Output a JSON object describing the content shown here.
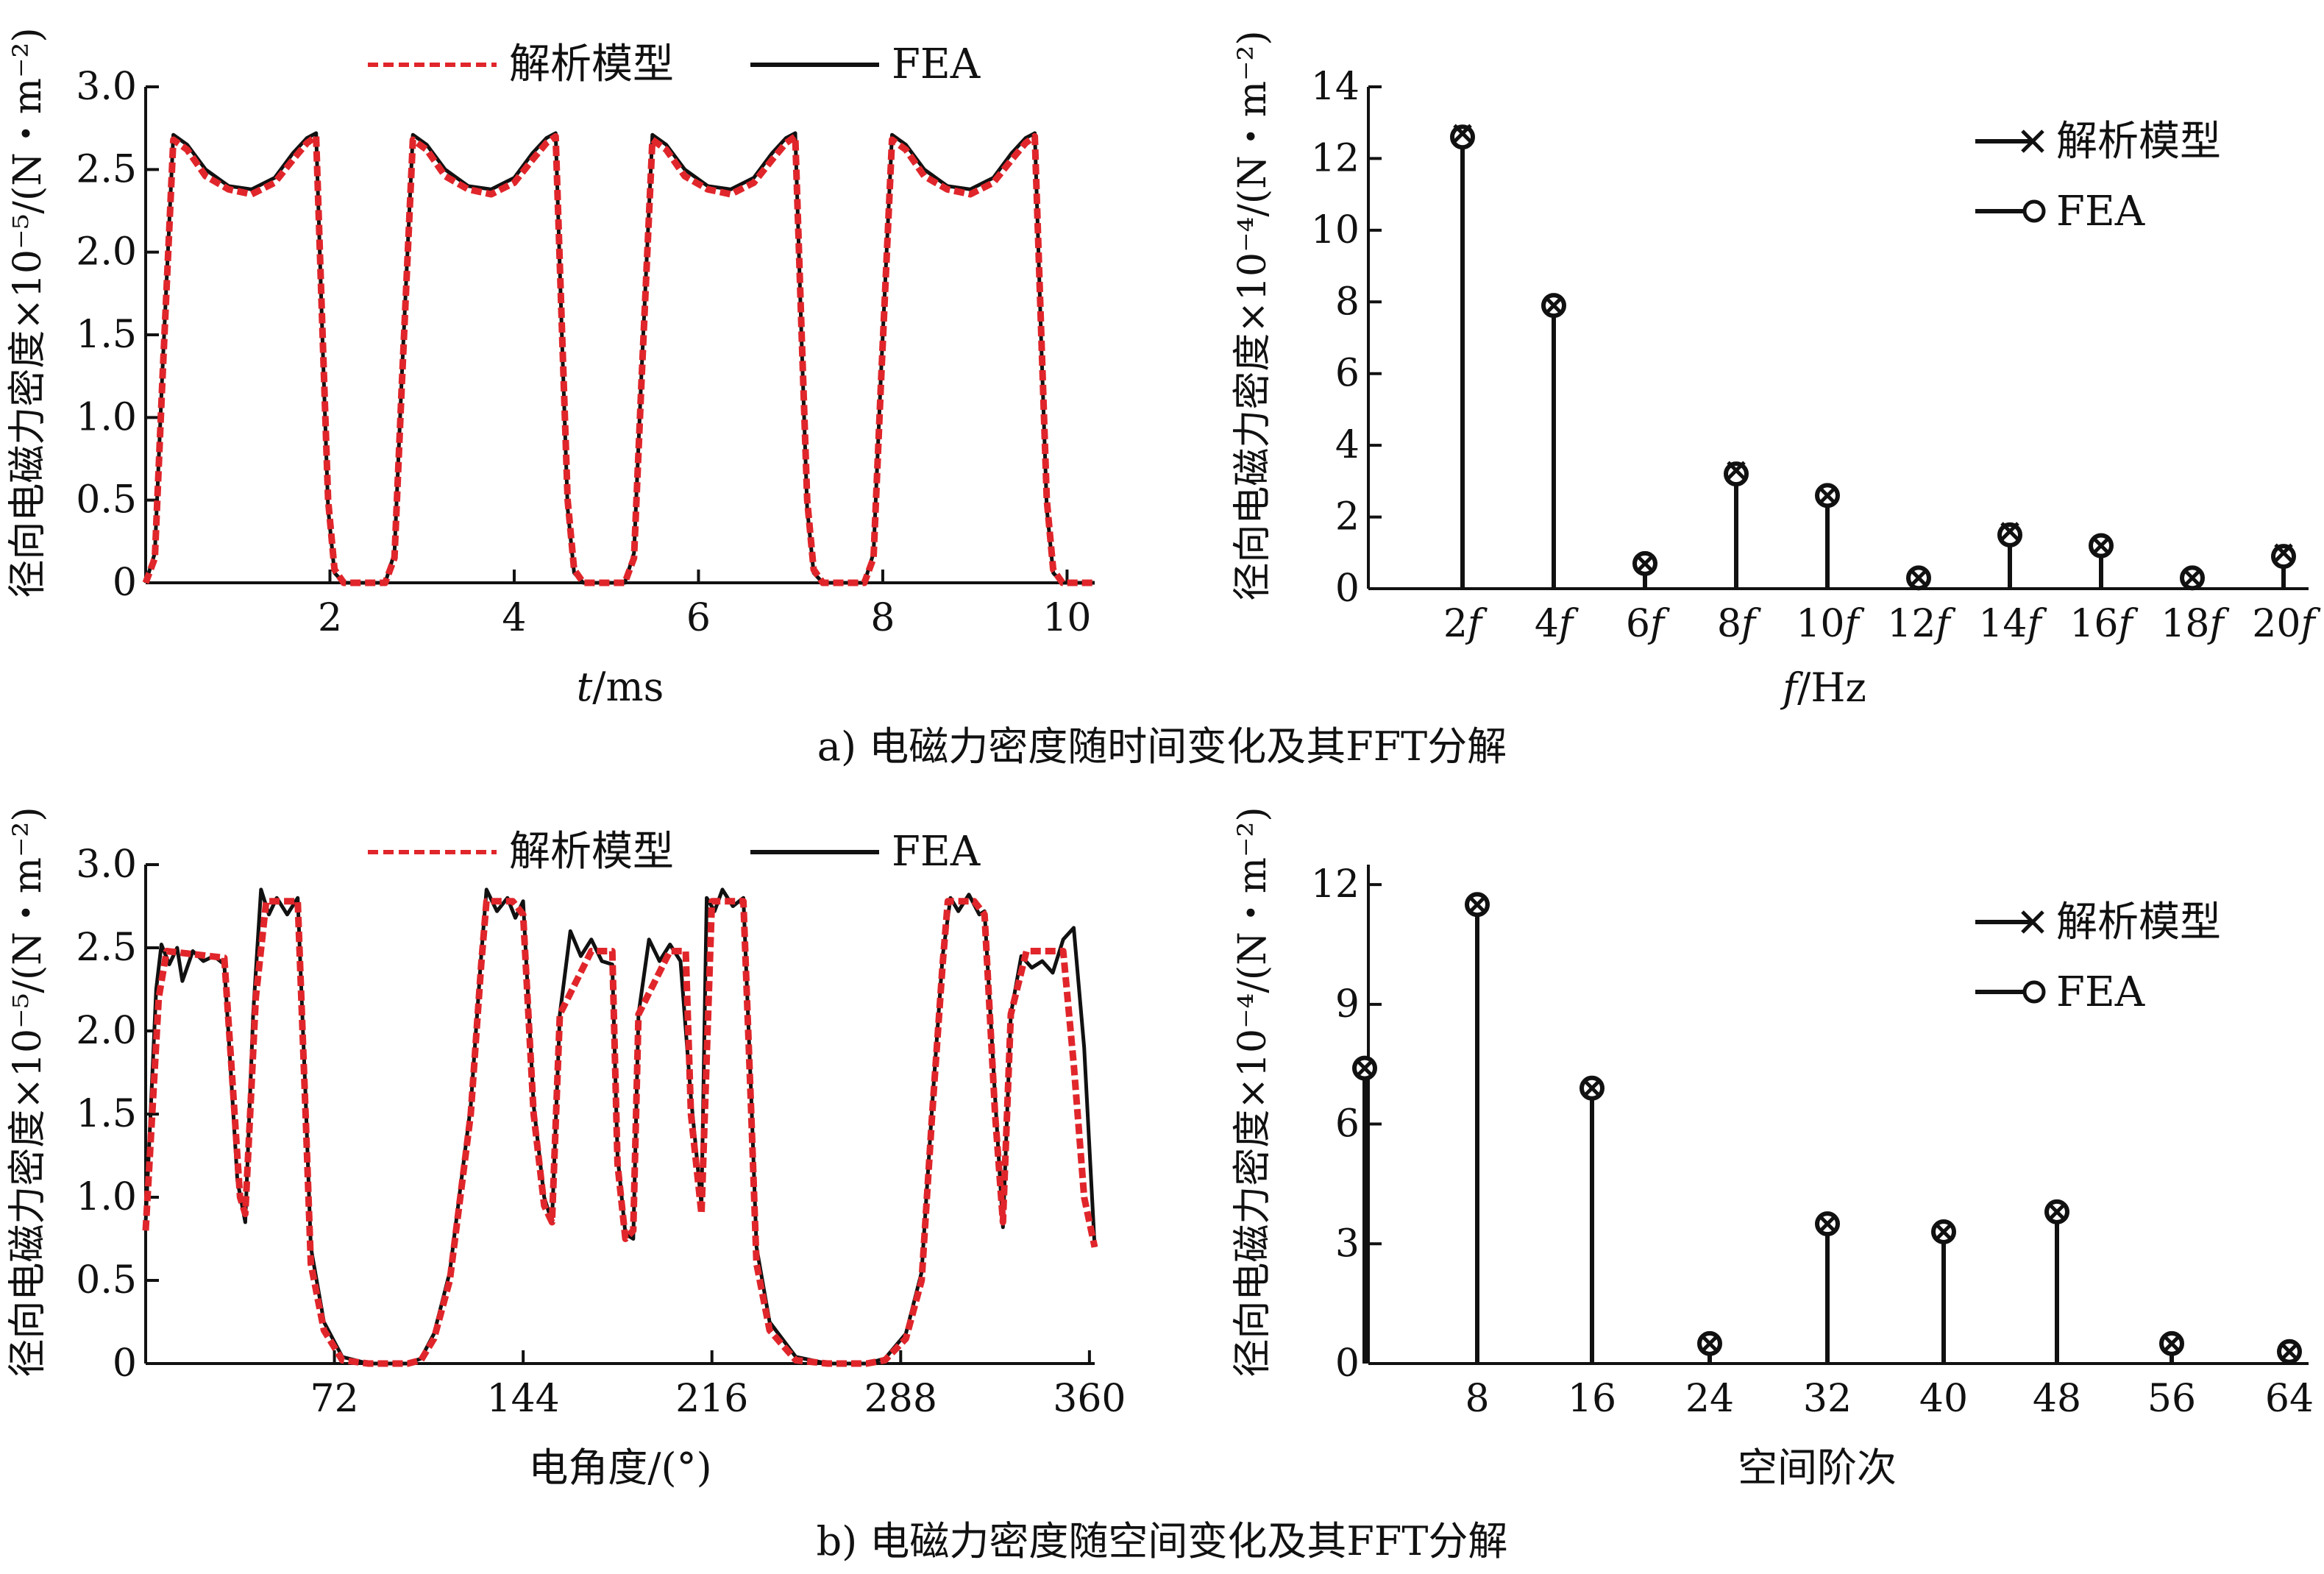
{
  "figure": {
    "caption_a": "a) 电磁力密度随时间变化及其FFT分解",
    "caption_b": "b) 电磁力密度随空间变化及其FFT分解"
  },
  "colors": {
    "analytic": "#e0262b",
    "fea": "#111111",
    "stem": "#111111"
  },
  "chart_data": [
    {
      "id": "a1",
      "type": "line",
      "title": "",
      "xlabel_italic": "t",
      "xlabel_unit": "/ms",
      "ylabel": "径向电磁力密度×10⁻⁵/(N・m⁻²)",
      "xlim": [
        0,
        10.3
      ],
      "ylim": [
        0,
        3.0
      ],
      "xticks": [
        2,
        4,
        6,
        8,
        10
      ],
      "yticks": [
        0,
        0.5,
        1.0,
        1.5,
        2.0,
        2.5,
        3.0
      ],
      "ytick_labels": [
        "0",
        "0.5",
        "1.0",
        "1.5",
        "2.0",
        "2.5",
        "3.0"
      ],
      "legend": "top-center",
      "series": [
        {
          "name": "解析模型",
          "style": "dashed",
          "period": 2.6,
          "x": [
            0,
            0.1,
            0.18,
            0.3,
            0.45,
            0.65,
            0.9,
            1.15,
            1.4,
            1.6,
            1.75,
            1.85,
            1.92,
            1.98,
            2.05,
            2.15,
            2.3,
            2.45,
            2.6
          ],
          "y": [
            0,
            0.15,
            1.2,
            2.68,
            2.62,
            2.46,
            2.38,
            2.35,
            2.42,
            2.56,
            2.66,
            2.7,
            1.5,
            0.5,
            0.08,
            0,
            0,
            0,
            0
          ]
        },
        {
          "name": "FEA",
          "style": "solid",
          "period": 2.6,
          "x": [
            0,
            0.1,
            0.18,
            0.3,
            0.45,
            0.65,
            0.9,
            1.15,
            1.4,
            1.6,
            1.75,
            1.85,
            1.92,
            1.98,
            2.05,
            2.15,
            2.3,
            2.45,
            2.6
          ],
          "y": [
            0,
            0.18,
            1.25,
            2.71,
            2.65,
            2.5,
            2.4,
            2.38,
            2.45,
            2.6,
            2.69,
            2.72,
            1.45,
            0.45,
            0.06,
            0,
            0,
            0,
            0
          ]
        }
      ]
    },
    {
      "id": "a2",
      "type": "bar",
      "title": "",
      "xlabel_italic": "f",
      "xlabel_unit": "/Hz",
      "ylabel": "径向电磁力密度×10⁻⁴/(N・m⁻²)",
      "categories": [
        "2f",
        "4f",
        "6f",
        "8f",
        "10f",
        "12f",
        "14f",
        "16f",
        "18f",
        "20f"
      ],
      "category_numbers": [
        "2",
        "4",
        "6",
        "8",
        "10",
        "12",
        "14",
        "16",
        "18",
        "20"
      ],
      "category_suffix": "f",
      "ylim": [
        0,
        14
      ],
      "yticks": [
        0,
        2,
        4,
        6,
        8,
        10,
        12,
        14
      ],
      "ytick_labels": [
        "0",
        "2",
        "4",
        "6",
        "8",
        "10",
        "12",
        "14"
      ],
      "legend": "top-right",
      "series": [
        {
          "name": "解析模型",
          "marker": "x",
          "values": [
            12.7,
            7.9,
            0.7,
            3.3,
            2.6,
            0.3,
            1.6,
            1.2,
            0.3,
            1.0
          ]
        },
        {
          "name": "FEA",
          "marker": "o",
          "values": [
            12.6,
            7.9,
            0.7,
            3.2,
            2.6,
            0.3,
            1.5,
            1.2,
            0.3,
            0.9
          ]
        }
      ]
    },
    {
      "id": "b1",
      "type": "line",
      "title": "",
      "xlabel": "电角度/(°)",
      "ylabel": "径向电磁力密度×10⁻⁵/(N・m⁻²)",
      "xlim": [
        0,
        362
      ],
      "ylim": [
        0,
        3.0
      ],
      "xticks": [
        72,
        144,
        216,
        288,
        360
      ],
      "yticks": [
        0,
        0.5,
        1.0,
        1.5,
        2.0,
        2.5,
        3.0
      ],
      "ytick_labels": [
        "0",
        "0.5",
        "1.0",
        "1.5",
        "2.0",
        "2.5",
        "3.0"
      ],
      "legend": "top-center",
      "series": [
        {
          "name": "解析模型",
          "style": "dashed",
          "x": [
            0,
            5,
            8,
            30,
            36,
            38,
            42,
            46,
            58,
            61,
            63,
            68,
            75,
            85,
            100,
            105,
            110,
            116,
            124,
            128,
            130,
            140,
            144,
            148,
            152,
            155,
            158,
            170,
            178,
            180,
            183,
            186,
            188,
            200,
            206,
            208,
            212,
            216,
            228,
            231,
            233,
            238,
            248,
            260,
            275,
            282,
            290,
            296,
            300,
            304,
            306,
            316,
            320,
            324,
            327,
            330,
            336,
            346,
            350,
            354,
            358,
            362
          ],
          "y": [
            0.8,
            2.2,
            2.48,
            2.44,
            1.0,
            0.9,
            2.2,
            2.78,
            2.78,
            1.5,
            0.6,
            0.2,
            0.02,
            0,
            0,
            0.02,
            0.15,
            0.5,
            1.5,
            2.4,
            2.78,
            2.78,
            2.7,
            1.5,
            0.95,
            0.85,
            2.1,
            2.48,
            2.48,
            1.2,
            0.75,
            0.8,
            2.1,
            2.48,
            2.48,
            1.5,
            0.9,
            2.78,
            2.78,
            1.5,
            0.6,
            0.2,
            0.02,
            0,
            0,
            0.02,
            0.15,
            0.5,
            1.5,
            2.4,
            2.78,
            2.78,
            2.7,
            1.5,
            0.85,
            2.1,
            2.48,
            2.48,
            2.48,
            1.8,
            1.0,
            0.7
          ]
        },
        {
          "name": "FEA",
          "style": "solid",
          "x": [
            0,
            4,
            6,
            9,
            12,
            14,
            18,
            22,
            26,
            30,
            35,
            38,
            41,
            44,
            47,
            50,
            54,
            58,
            61,
            63,
            68,
            75,
            85,
            100,
            105,
            110,
            116,
            124,
            128,
            130,
            134,
            138,
            141,
            144,
            148,
            152,
            155,
            158,
            162,
            166,
            170,
            174,
            178,
            180,
            183,
            186,
            188,
            192,
            196,
            200,
            204,
            208,
            212,
            214,
            217,
            220,
            224,
            228,
            231,
            233,
            238,
            248,
            260,
            275,
            282,
            290,
            296,
            300,
            304,
            307,
            310,
            314,
            318,
            320,
            324,
            327,
            330,
            334,
            338,
            342,
            346,
            350,
            354,
            358,
            362
          ],
          "y": [
            0.85,
            2.25,
            2.52,
            2.4,
            2.5,
            2.3,
            2.48,
            2.42,
            2.45,
            2.4,
            1.1,
            0.85,
            2.1,
            2.85,
            2.7,
            2.8,
            2.7,
            2.8,
            1.6,
            0.7,
            0.25,
            0.04,
            0,
            0,
            0.03,
            0.18,
            0.55,
            1.55,
            2.45,
            2.85,
            2.72,
            2.8,
            2.68,
            2.78,
            1.55,
            1.0,
            0.85,
            2.1,
            2.6,
            2.45,
            2.55,
            2.42,
            2.4,
            1.25,
            0.78,
            0.75,
            2.1,
            2.55,
            2.42,
            2.52,
            2.42,
            1.6,
            0.95,
            2.8,
            2.72,
            2.85,
            2.75,
            2.8,
            1.6,
            0.7,
            0.25,
            0.04,
            0,
            0,
            0.03,
            0.18,
            0.55,
            1.55,
            2.45,
            2.8,
            2.72,
            2.82,
            2.7,
            2.72,
            1.6,
            0.82,
            2.1,
            2.45,
            2.38,
            2.42,
            2.35,
            2.55,
            2.62,
            1.9,
            0.7
          ]
        }
      ]
    },
    {
      "id": "b2",
      "type": "bar",
      "title": "",
      "xlabel": "空间阶次",
      "ylabel": "径向电磁力密度×10⁻⁴/(N・m⁻²)",
      "categories": [
        "0",
        "8",
        "16",
        "24",
        "32",
        "40",
        "48",
        "56",
        "64"
      ],
      "category_labels": [
        "",
        "8",
        "16",
        "24",
        "32",
        "40",
        "48",
        "56",
        "64"
      ],
      "ylim": [
        0,
        12.5
      ],
      "yticks": [
        0,
        3,
        6,
        9,
        12
      ],
      "ytick_labels": [
        "0",
        "3",
        "6",
        "9",
        "12"
      ],
      "legend": "top-right",
      "series": [
        {
          "name": "解析模型",
          "marker": "x",
          "values": [
            7.4,
            11.5,
            6.9,
            0.5,
            3.5,
            3.3,
            3.8,
            0.5,
            0.3
          ]
        },
        {
          "name": "FEA",
          "marker": "o",
          "values": [
            7.4,
            11.5,
            6.9,
            0.5,
            3.5,
            3.3,
            3.8,
            0.5,
            0.3
          ]
        }
      ]
    }
  ]
}
